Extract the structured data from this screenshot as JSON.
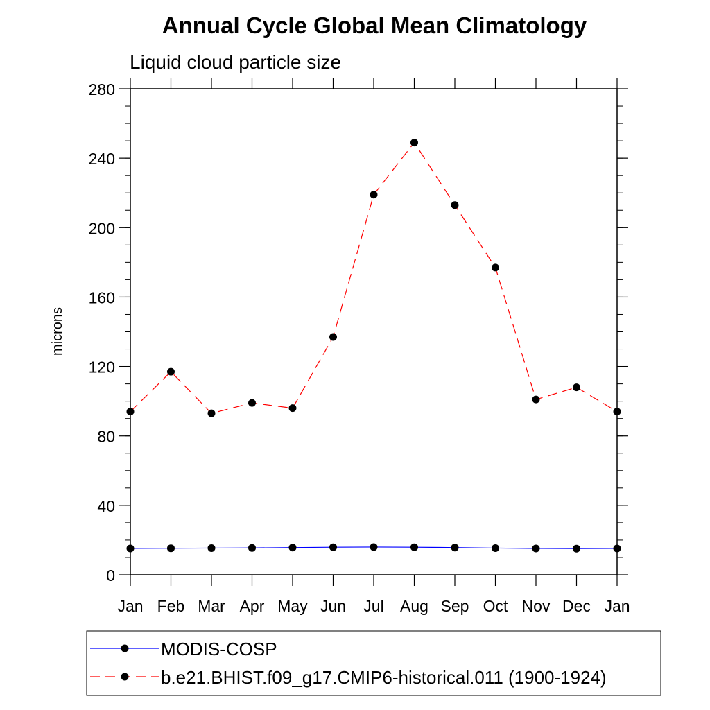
{
  "chart_data": {
    "type": "line",
    "title": "Annual Cycle Global Mean Climatology",
    "subtitle": "Liquid cloud particle size",
    "xlabel": "",
    "ylabel": "microns",
    "categories": [
      "Jan",
      "Feb",
      "Mar",
      "Apr",
      "May",
      "Jun",
      "Jul",
      "Aug",
      "Sep",
      "Oct",
      "Nov",
      "Dec",
      "Jan"
    ],
    "ylim": [
      0,
      280
    ],
    "yticks": [
      0,
      40,
      80,
      120,
      160,
      200,
      240,
      280
    ],
    "yticks_labels": [
      "0",
      "40",
      "80",
      "120",
      "160",
      "200",
      "240",
      "280"
    ],
    "series": [
      {
        "name": "MODIS-COSP",
        "color": "#0000ff",
        "style": "solid",
        "values": [
          15.2,
          15.3,
          15.4,
          15.5,
          15.7,
          15.9,
          16.0,
          15.9,
          15.7,
          15.4,
          15.2,
          15.1,
          15.2
        ]
      },
      {
        "name": "b.e21.BHIST.f09_g17.CMIP6-historical.011 (1900-1924)",
        "color": "#ff0000",
        "style": "dashed",
        "values": [
          94,
          117,
          93,
          99,
          96,
          137,
          219,
          249,
          213,
          177,
          101,
          108,
          94
        ]
      }
    ],
    "legend_position": "bottom"
  }
}
